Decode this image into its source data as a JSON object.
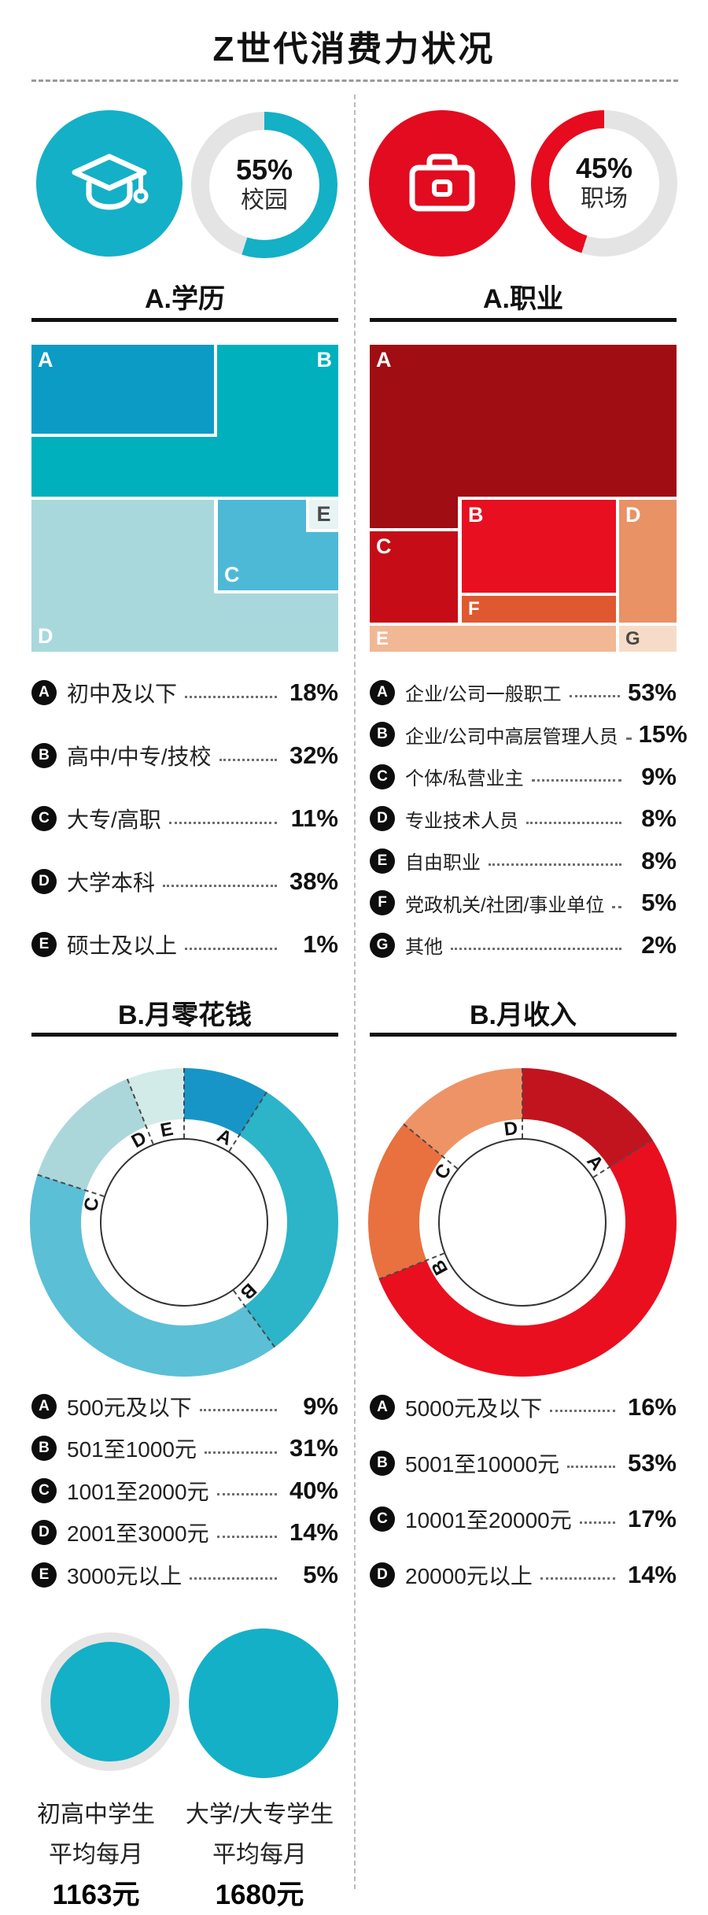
{
  "header": {
    "title": "Z世代消费力状况"
  },
  "colors": {
    "teal": "#14b0c7",
    "red": "#e60b1e",
    "gauge_track": "#e4e4e4",
    "badge_black": "#0d0d0d"
  },
  "chart_data": [
    {
      "type": "donut",
      "name": "campus-share-gauge",
      "value": 55,
      "pct_label": "55%",
      "label": "校园",
      "color": "#14b0c5",
      "track": "#e4e4e4",
      "direction": "clockwise",
      "icon": "graduation-cap"
    },
    {
      "type": "donut",
      "name": "workplace-share-gauge",
      "value": 45,
      "pct_label": "45%",
      "label": "职场",
      "color": "#e60b1e",
      "track": "#e4e4e4",
      "direction": "counterclockwise",
      "icon": "briefcase"
    },
    {
      "type": "treemap",
      "title": "A.学历",
      "items": [
        {
          "letter": "A",
          "label": "初中及以下",
          "value": 18,
          "pct": "18%",
          "color": "#0c9bc5"
        },
        {
          "letter": "B",
          "label": "高中/中专/技校",
          "value": 32,
          "pct": "32%",
          "color": "#00b0bc"
        },
        {
          "letter": "C",
          "label": "大专/高职",
          "value": 11,
          "pct": "11%",
          "color": "#4db9d7"
        },
        {
          "letter": "D",
          "label": "大学本科",
          "value": 38,
          "pct": "38%",
          "color": "#a8d8dc"
        },
        {
          "letter": "E",
          "label": "硕士及以上",
          "value": 1,
          "pct": "1%",
          "color": "#e8f3f3"
        }
      ]
    },
    {
      "type": "treemap",
      "title": "A.职业",
      "items": [
        {
          "letter": "A",
          "label": "企业/公司一般职工",
          "value": 53,
          "pct": "53%",
          "color": "#a00d12"
        },
        {
          "letter": "B",
          "label": "企业/公司中高层管理人员",
          "value": 15,
          "pct": "15%",
          "color": "#e80f20"
        },
        {
          "letter": "C",
          "label": "个体/私营业主",
          "value": 9,
          "pct": "9%",
          "color": "#c60d17"
        },
        {
          "letter": "D",
          "label": "专业技术人员",
          "value": 8,
          "pct": "8%",
          "color": "#e89266"
        },
        {
          "letter": "E",
          "label": "自由职业",
          "value": 8,
          "pct": "8%",
          "color": "#f2b795"
        },
        {
          "letter": "F",
          "label": "党政机关/社团/事业单位",
          "value": 5,
          "pct": "5%",
          "color": "#e0582f"
        },
        {
          "letter": "G",
          "label": "其他",
          "value": 2,
          "pct": "2%",
          "color": "#f6dcc8"
        }
      ]
    },
    {
      "type": "donut",
      "title": "B.月零花钱",
      "items": [
        {
          "letter": "A",
          "label": "500元及以下",
          "value": 9,
          "pct": "9%",
          "color": "#1895c7"
        },
        {
          "letter": "B",
          "label": "501至1000元",
          "value": 31,
          "pct": "31%",
          "color": "#2cb4c8"
        },
        {
          "letter": "C",
          "label": "1001至2000元",
          "value": 40,
          "pct": "40%",
          "color": "#5bbfd6"
        },
        {
          "letter": "D",
          "label": "2001至3000元",
          "value": 14,
          "pct": "14%",
          "color": "#abd7da"
        },
        {
          "letter": "E",
          "label": "3000元以上",
          "value": 5,
          "pct": "5%",
          "color": "#d2eae8"
        }
      ]
    },
    {
      "type": "donut",
      "title": "B.月收入",
      "items": [
        {
          "letter": "A",
          "label": "5000元及以下",
          "value": 16,
          "pct": "16%",
          "color": "#c2141f"
        },
        {
          "letter": "B",
          "label": "5001至10000元",
          "value": 53,
          "pct": "53%",
          "color": "#e90f1f"
        },
        {
          "letter": "C",
          "label": "10001至20000元",
          "value": 17,
          "pct": "17%",
          "color": "#e8713f"
        },
        {
          "letter": "D",
          "label": "20000元以上",
          "value": 14,
          "pct": "14%",
          "color": "#ee9366"
        }
      ]
    },
    {
      "type": "circles",
      "items": [
        {
          "group": "初高中学生",
          "sub": "平均每月",
          "amount": "1163元",
          "color": "#14b0c7"
        },
        {
          "group": "大学/大专学生",
          "sub": "平均每月",
          "amount": "1680元",
          "color": "#14b0c7"
        }
      ]
    }
  ]
}
